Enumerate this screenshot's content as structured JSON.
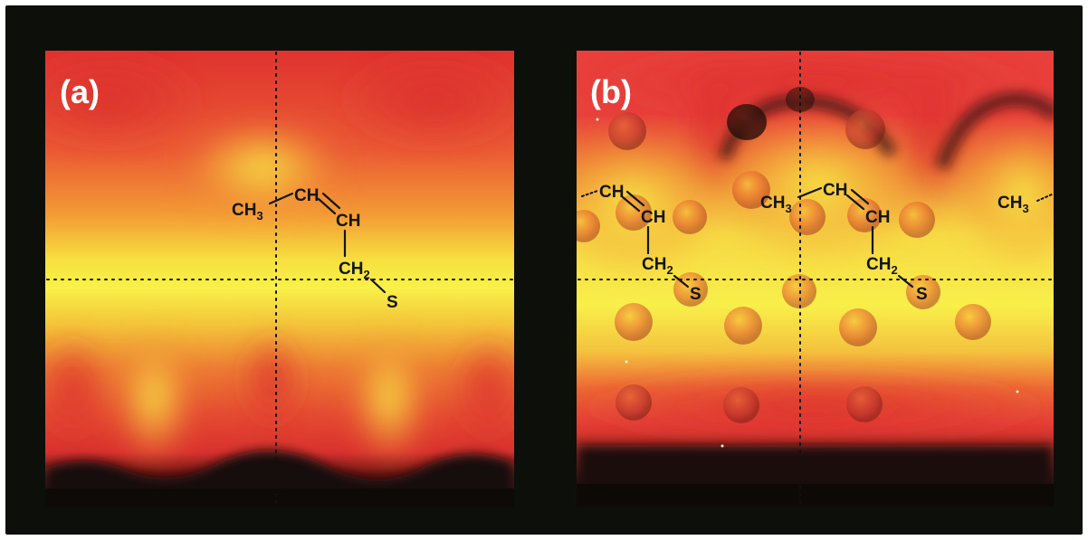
{
  "figure": {
    "panels": [
      {
        "label": "(a)",
        "molecule": {
          "ch3": "CH",
          "ch3_sub": "3",
          "ch_a": "CH",
          "ch_b": "CH",
          "ch2": "CH",
          "ch2_sub": "2",
          "s": "S"
        }
      },
      {
        "label": "(b)",
        "molecule": {
          "ch3": "CH",
          "ch3_sub": "3",
          "ch_a": "CH",
          "ch_b": "CH",
          "ch2": "CH",
          "ch2_sub": "2",
          "s": "S"
        },
        "periodic_left": {
          "ch_a": "CH",
          "ch_b": "CH",
          "ch2": "CH",
          "ch2_sub": "2",
          "s": "S"
        },
        "periodic_right": {
          "ch3": "CH",
          "ch3_sub": "3"
        }
      }
    ],
    "colors": {
      "frame": "#0c0f0a",
      "hot_red": "#e23a32",
      "orange": "#f07a2c",
      "yellow": "#f7f042",
      "dark": "#0d0a08"
    }
  }
}
